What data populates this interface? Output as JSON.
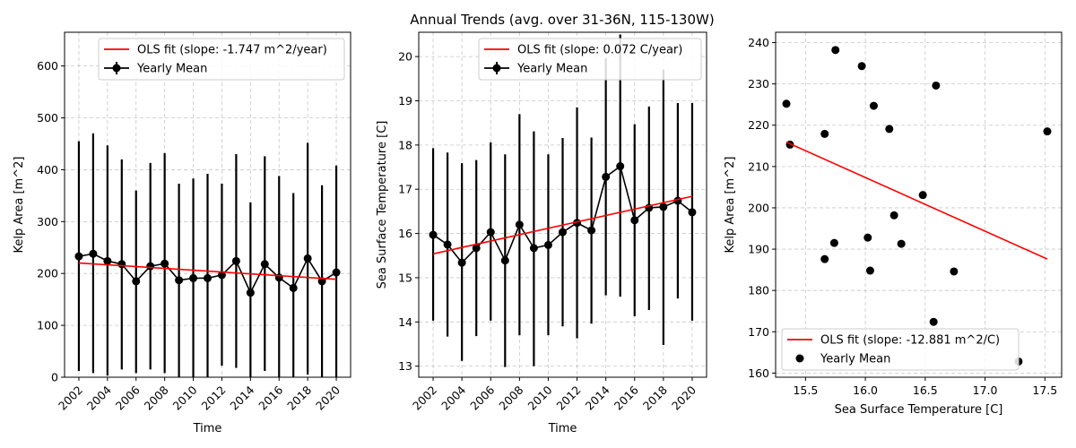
{
  "figure": {
    "title": "Annual Trends (avg. over 31-36N, 115-130W)"
  },
  "chart_data": [
    {
      "type": "line",
      "xlabel": "Time",
      "ylabel": "Kelp Area [m^2]",
      "xlim": [
        2001,
        2021
      ],
      "ylim": [
        0,
        665
      ],
      "xticks": [
        2002,
        2004,
        2006,
        2008,
        2010,
        2012,
        2014,
        2016,
        2018,
        2020
      ],
      "yticks": [
        0,
        100,
        200,
        300,
        400,
        500,
        600
      ],
      "grid": true,
      "legend_position": "top-right",
      "series": [
        {
          "name": "Yearly Mean",
          "style": "errorbar",
          "color": "#000000",
          "x": [
            2002,
            2003,
            2004,
            2005,
            2006,
            2007,
            2008,
            2009,
            2010,
            2011,
            2012,
            2013,
            2014,
            2015,
            2016,
            2017,
            2018,
            2019,
            2020
          ],
          "y": [
            233,
            238,
            224,
            218,
            185,
            214,
            219,
            187,
            191,
            191,
            197,
            224,
            163,
            218,
            192,
            172,
            229,
            185,
            202
          ],
          "yerr_low": [
            12,
            8,
            3,
            15,
            8,
            15,
            8,
            -2,
            -2,
            -2,
            22,
            18,
            -2,
            12,
            -2,
            -2,
            5,
            -2,
            -2
          ],
          "yerr_high": [
            455,
            470,
            447,
            420,
            360,
            413,
            432,
            373,
            383,
            392,
            373,
            430,
            337,
            426,
            388,
            355,
            452,
            370,
            408
          ]
        },
        {
          "name": "OLS fit (slope: -1.747 m^2/year)",
          "style": "line",
          "color": "#ff0000",
          "x": [
            2002,
            2020
          ],
          "y": [
            220.2,
            188.8
          ]
        }
      ]
    },
    {
      "type": "line",
      "xlabel": "Time",
      "ylabel": "Sea Surface Temperature [C]",
      "xlim": [
        2001,
        2021
      ],
      "ylim": [
        12.75,
        20.55
      ],
      "xticks": [
        2002,
        2004,
        2006,
        2008,
        2010,
        2012,
        2014,
        2016,
        2018,
        2020
      ],
      "yticks": [
        13,
        14,
        15,
        16,
        17,
        18,
        19,
        20
      ],
      "grid": true,
      "legend_position": "top-right",
      "series": [
        {
          "name": "Yearly Mean",
          "style": "errorbar",
          "color": "#000000",
          "x": [
            2002,
            2003,
            2004,
            2005,
            2006,
            2007,
            2008,
            2009,
            2010,
            2011,
            2012,
            2013,
            2014,
            2015,
            2016,
            2017,
            2018,
            2019,
            2020
          ],
          "y": [
            15.97,
            15.75,
            15.34,
            15.67,
            16.03,
            15.39,
            16.2,
            15.67,
            15.74,
            16.03,
            16.24,
            16.07,
            17.28,
            17.52,
            16.3,
            16.58,
            16.6,
            16.74,
            16.48
          ],
          "yerr_low": [
            14.03,
            13.67,
            13.12,
            13.68,
            14.03,
            12.98,
            13.7,
            13.0,
            13.7,
            13.9,
            13.63,
            13.96,
            14.6,
            14.57,
            14.13,
            14.27,
            13.48,
            14.53,
            14.03
          ],
          "yerr_high": [
            17.93,
            17.83,
            17.59,
            17.66,
            18.06,
            17.79,
            18.7,
            18.31,
            17.79,
            18.16,
            18.85,
            18.17,
            19.96,
            20.5,
            18.47,
            18.87,
            19.71,
            18.95,
            18.95
          ]
        },
        {
          "name": "OLS fit (slope: 0.072 C/year)",
          "style": "line",
          "color": "#ff0000",
          "x": [
            2002,
            2020
          ],
          "y": [
            15.54,
            16.84
          ]
        }
      ]
    },
    {
      "type": "scatter",
      "xlabel": "Sea Surface Temperature [C]",
      "ylabel": "Kelp Area [m^2]",
      "xlim": [
        15.25,
        17.64
      ],
      "ylim": [
        159.0,
        242.5
      ],
      "xticks": [
        15.5,
        16.0,
        16.5,
        17.0,
        17.5
      ],
      "xtick_labels": [
        "15.5",
        "16.0",
        "16.5",
        "17.0",
        "17.5"
      ],
      "yticks": [
        160,
        170,
        180,
        190,
        200,
        210,
        220,
        230,
        240
      ],
      "grid": true,
      "legend_position": "bottom-left",
      "series": [
        {
          "name": "Yearly Mean",
          "style": "scatter",
          "color": "#000000",
          "x": [
            15.34,
            15.37,
            15.66,
            15.66,
            15.74,
            15.75,
            15.97,
            16.02,
            16.04,
            16.07,
            16.2,
            16.24,
            16.3,
            16.48,
            16.57,
            16.59,
            16.74,
            17.28,
            17.52
          ],
          "y": [
            225.2,
            215.3,
            217.9,
            187.6,
            191.5,
            238.2,
            234.3,
            192.8,
            184.8,
            224.7,
            219.1,
            198.2,
            191.3,
            203.1,
            172.4,
            229.6,
            184.6,
            162.8,
            218.5
          ]
        },
        {
          "name": "OLS fit (slope: -12.881 m^2/C)",
          "style": "line",
          "color": "#ff0000",
          "x": [
            15.34,
            17.52
          ],
          "y": [
            215.9,
            187.6
          ]
        }
      ]
    }
  ]
}
